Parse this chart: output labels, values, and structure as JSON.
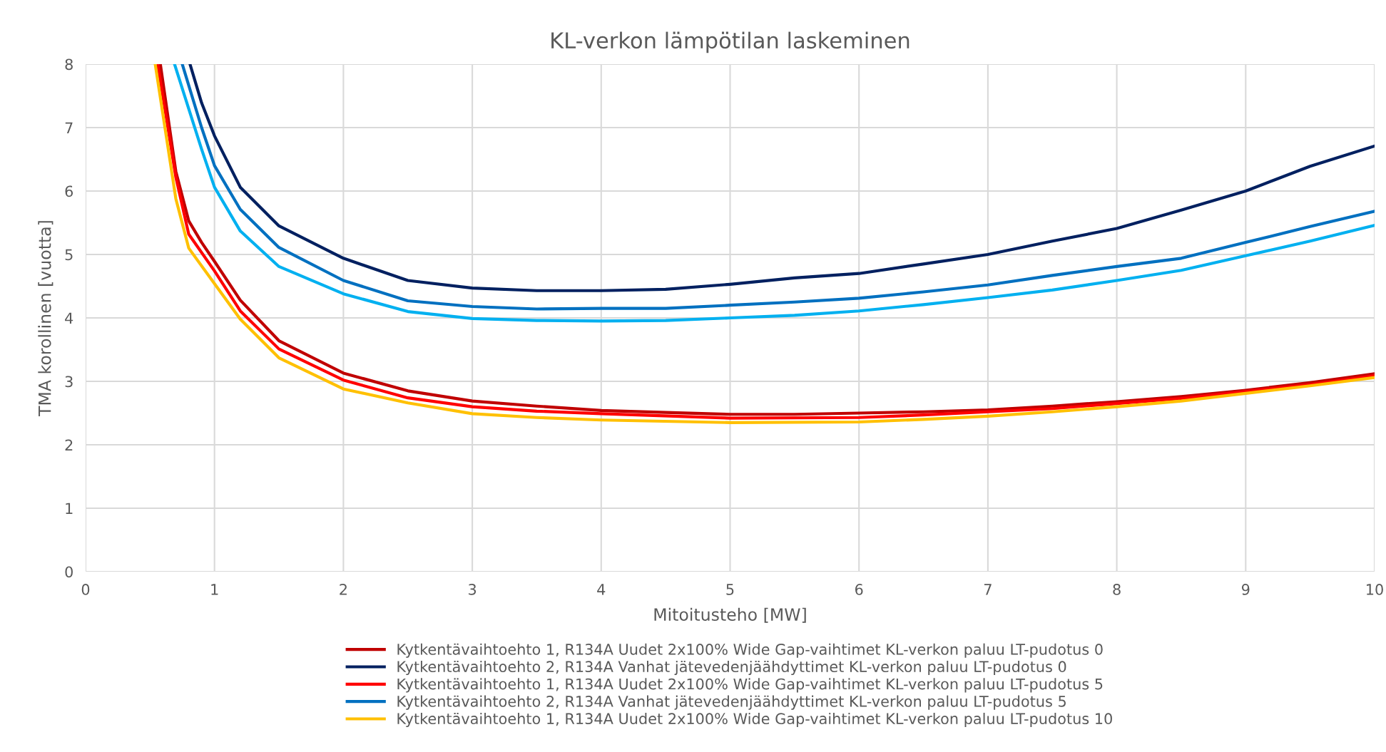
{
  "chart_data": {
    "type": "line",
    "title": "KL-verkon lämpötilan laskeminen",
    "xlabel": "Mitoitusteho [MW]",
    "ylabel": "TMA korollinen [vuotta]",
    "xlim": [
      0,
      10
    ],
    "ylim": [
      0,
      8
    ],
    "xticks": [
      0,
      1,
      2,
      3,
      4,
      5,
      6,
      7,
      8,
      9,
      10
    ],
    "yticks": [
      0,
      1,
      2,
      3,
      4,
      5,
      6,
      7,
      8
    ],
    "grid": true,
    "legend": "bottom",
    "line_style": "solid",
    "marker": "none",
    "series": [
      {
        "name": "Kytkentävaihtoehto 1, R134A Uudet 2x100% Wide Gap-vaihtimet KL-verkon paluu LT-pudotus 0",
        "color": "#c00000",
        "x": [
          0.58,
          0.7,
          0.8,
          0.9,
          1,
          1.2,
          1.5,
          2,
          2.5,
          3,
          3.5,
          4,
          4.5,
          5,
          5.5,
          6,
          6.5,
          7,
          7.5,
          8,
          8.5,
          9,
          9.5,
          10
        ],
        "values": [
          8,
          6.31,
          5.53,
          5.19,
          4.89,
          4.28,
          3.64,
          3.13,
          2.85,
          2.69,
          2.61,
          2.54,
          2.51,
          2.48,
          2.48,
          2.5,
          2.52,
          2.55,
          2.61,
          2.68,
          2.76,
          2.86,
          2.98,
          3.12
        ]
      },
      {
        "name": "Kytkentävaihtoehto 2, R134A Vanhat jätevedenjäähdyttimet KL-verkon paluu LT-pudotus 0",
        "color": "#002060",
        "x": [
          0.81,
          0.9,
          1,
          1.2,
          1.5,
          2,
          2.5,
          3,
          3.5,
          4,
          4.5,
          5,
          5.5,
          6,
          6.5,
          7,
          7.5,
          8,
          8.5,
          9,
          9.5,
          10
        ],
        "values": [
          8,
          7.39,
          6.87,
          6.06,
          5.45,
          4.94,
          4.59,
          4.47,
          4.43,
          4.43,
          4.45,
          4.53,
          4.63,
          4.7,
          4.85,
          5.0,
          5.21,
          5.41,
          5.7,
          6.0,
          6.39,
          6.71
        ]
      },
      {
        "name": "Kytkentävaihtoehto 1, R134A Uudet 2x100% Wide Gap-vaihtimet KL-verkon paluu LT-pudotus 5",
        "color": "#ff0000",
        "x": [
          0.56,
          0.7,
          0.8,
          1,
          1.2,
          1.5,
          2,
          2.5,
          3,
          3.5,
          4,
          5,
          6,
          6.5,
          7,
          7.5,
          8,
          8.5,
          9,
          9.5,
          10
        ],
        "values": [
          8,
          6.22,
          5.32,
          4.74,
          4.11,
          3.51,
          3.02,
          2.74,
          2.6,
          2.53,
          2.49,
          2.42,
          2.43,
          2.47,
          2.52,
          2.57,
          2.65,
          2.73,
          2.84,
          2.95,
          3.09
        ]
      },
      {
        "name": "Kytkentävaihtoehto 2, R134A Vanhat jätevedenjäähdyttimet KL-verkon paluu LT-pudotus 5",
        "color": "#0070c0",
        "x": [
          0.75,
          0.9,
          1,
          1.2,
          1.5,
          2,
          2.5,
          3,
          3.5,
          4,
          4.5,
          5,
          5.5,
          6,
          6.5,
          7,
          7.5,
          8,
          8.5,
          9,
          9.5,
          10
        ],
        "values": [
          8,
          7.0,
          6.4,
          5.71,
          5.11,
          4.59,
          4.27,
          4.18,
          4.14,
          4.15,
          4.15,
          4.2,
          4.25,
          4.31,
          4.41,
          4.52,
          4.67,
          4.81,
          4.94,
          5.19,
          5.44,
          5.68
        ]
      },
      {
        "name": "Kytkentävaihtoehto 1, R134A Uudet 2x100% Wide Gap-vaihtimet KL-verkon paluu LT-pudotus 10",
        "color": "#ffc000",
        "x": [
          0.54,
          0.7,
          0.8,
          1,
          1.2,
          1.5,
          2,
          2.5,
          3,
          3.5,
          4,
          5,
          6,
          6.5,
          7,
          7.5,
          8,
          8.5,
          9,
          9.5,
          10
        ],
        "values": [
          8,
          5.88,
          5.1,
          4.54,
          3.98,
          3.37,
          2.88,
          2.66,
          2.49,
          2.43,
          2.39,
          2.35,
          2.36,
          2.4,
          2.45,
          2.52,
          2.6,
          2.69,
          2.81,
          2.93,
          3.06
        ]
      },
      {
        "color": "#00b0f0",
        "x": [
          0.69,
          0.9,
          1,
          1.2,
          1.5,
          2,
          2.5,
          3,
          3.5,
          4,
          4.5,
          5,
          5.5,
          6,
          6.5,
          7,
          7.5,
          8,
          8.5,
          9,
          9.5,
          10
        ],
        "values": [
          8,
          6.66,
          6.06,
          5.37,
          4.81,
          4.38,
          4.1,
          3.99,
          3.96,
          3.95,
          3.96,
          4.0,
          4.04,
          4.11,
          4.21,
          4.32,
          4.44,
          4.59,
          4.75,
          4.98,
          5.21,
          5.46
        ]
      }
    ]
  }
}
